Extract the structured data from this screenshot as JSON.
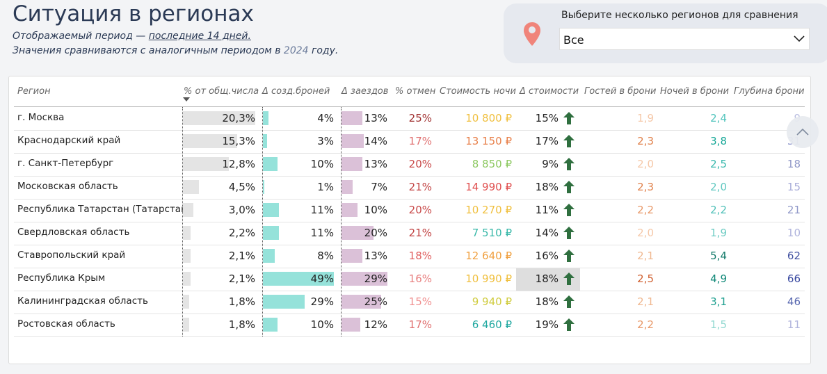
{
  "header": {
    "title": "Ситуация в регионах",
    "period_text": "Отображаемый период —",
    "period_link": "последние 14 дней.",
    "compare_text": "Значения сравниваются с аналогичным периодом в",
    "compare_year": "2024",
    "compare_tail": "году."
  },
  "selector": {
    "label": "Выберите несколько регионов для сравнения",
    "value": "Все"
  },
  "table": {
    "columns": [
      {
        "label": "Регион"
      },
      {
        "label": "% от общ.числа",
        "bar": "#e4e4e4"
      },
      {
        "label": "Δ созд.броней",
        "bar": "#95e2da"
      },
      {
        "label": "Δ заездов",
        "bar": "#dbc1d8"
      },
      {
        "label": "% отмен"
      },
      {
        "label": "Стоимость ночи"
      },
      {
        "label": "Δ стоимости",
        "arrow": "#2f6f3f"
      },
      {
        "label": "Гостей в брони"
      },
      {
        "label": "Ночей в брони"
      },
      {
        "label": "Глубина брони"
      }
    ],
    "rows": [
      [
        "г. Москва",
        {
          "value": 20.3,
          "label": "20,3%"
        },
        {
          "value": 4,
          "label": "4%"
        },
        {
          "value": 13,
          "label": "13%"
        },
        {
          "label": "25%",
          "color": "#a03030"
        },
        {
          "label": "10 800 ₽",
          "color": "#f0c040"
        },
        {
          "label": "15%"
        },
        {
          "label": "1,9",
          "color": "#f5c8a8"
        },
        {
          "label": "2,4",
          "color": "#50c4bc"
        },
        {
          "label": "9",
          "color": "#b8bce0"
        }
      ],
      [
        "Краснодарский край",
        {
          "value": 15.3,
          "label": "15,3%"
        },
        {
          "value": 3,
          "label": "3%"
        },
        {
          "value": 14,
          "label": "14%"
        },
        {
          "label": "17%",
          "color": "#e07070"
        },
        {
          "label": "13 150 ₽",
          "color": "#e8804a"
        },
        {
          "label": "17%"
        },
        {
          "label": "2,3",
          "color": "#e0804a"
        },
        {
          "label": "3,8",
          "color": "#18a898"
        },
        {
          "label": "31",
          "color": "#8890c8"
        }
      ],
      [
        "г. Санкт-Петербург",
        {
          "value": 12.8,
          "label": "12,8%"
        },
        {
          "value": 10,
          "label": "10%"
        },
        {
          "value": 13,
          "label": "13%"
        },
        {
          "label": "20%",
          "color": "#c84848"
        },
        {
          "label": "8 850 ₽",
          "color": "#8cc860"
        },
        {
          "label": "9%"
        },
        {
          "label": "2,0",
          "color": "#f5c8a8"
        },
        {
          "label": "2,5",
          "color": "#38b8ac"
        },
        {
          "label": "18",
          "color": "#9098c8"
        }
      ],
      [
        "Московская область",
        {
          "value": 4.5,
          "label": "4,5%"
        },
        {
          "value": 1,
          "label": "1%"
        },
        {
          "value": 7,
          "label": "7%"
        },
        {
          "label": "21%",
          "color": "#c04040"
        },
        {
          "label": "14 990 ₽",
          "color": "#e05050"
        },
        {
          "label": "18%"
        },
        {
          "label": "2,3",
          "color": "#e0804a"
        },
        {
          "label": "2,0",
          "color": "#60c8c0"
        },
        {
          "label": "15",
          "color": "#a8acd8"
        }
      ],
      [
        "Республика Татарстан (Татарстан)",
        {
          "value": 3.0,
          "label": "3,0%"
        },
        {
          "value": 11,
          "label": "11%"
        },
        {
          "value": 10,
          "label": "10%"
        },
        {
          "label": "20%",
          "color": "#c84848"
        },
        {
          "label": "10 270 ₽",
          "color": "#f0c040"
        },
        {
          "label": "11%"
        },
        {
          "label": "2,2",
          "color": "#e89868"
        },
        {
          "label": "2,2",
          "color": "#50c0b8"
        },
        {
          "label": "21",
          "color": "#9098c8"
        }
      ],
      [
        "Свердловская область",
        {
          "value": 2.2,
          "label": "2,2%"
        },
        {
          "value": 11,
          "label": "11%"
        },
        {
          "value": 20,
          "label": "20%"
        },
        {
          "label": "21%",
          "color": "#c04040"
        },
        {
          "label": "7 510 ₽",
          "color": "#38b8a8"
        },
        {
          "label": "14%"
        },
        {
          "label": "2,0",
          "color": "#f5c8a8"
        },
        {
          "label": "1,9",
          "color": "#70ccc4"
        },
        {
          "label": "10",
          "color": "#b0b4dc"
        }
      ],
      [
        "Ставропольский край",
        {
          "value": 2.1,
          "label": "2,1%"
        },
        {
          "value": 8,
          "label": "8%"
        },
        {
          "value": 13,
          "label": "13%"
        },
        {
          "label": "18%",
          "color": "#e06060"
        },
        {
          "label": "12 640 ₽",
          "color": "#f0a040"
        },
        {
          "label": "16%"
        },
        {
          "label": "2,1",
          "color": "#f0b890"
        },
        {
          "label": "5,4",
          "color": "#107868"
        },
        {
          "label": "62",
          "color": "#4050a0"
        }
      ],
      [
        "Республика Крым",
        {
          "value": 2.1,
          "label": "2,1%"
        },
        {
          "value": 49,
          "label": "49%"
        },
        {
          "value": 29,
          "label": "29%"
        },
        {
          "label": "16%",
          "color": "#e88080"
        },
        {
          "label": "10 990 ₽",
          "color": "#f0c040"
        },
        {
          "label": "18%",
          "highlight": "#dedede"
        },
        {
          "label": "2,5",
          "color": "#d06030"
        },
        {
          "label": "4,9",
          "color": "#108878"
        },
        {
          "label": "66",
          "color": "#3848a0"
        }
      ],
      [
        "Калининградская область",
        {
          "value": 1.8,
          "label": "1,8%"
        },
        {
          "value": 29,
          "label": "29%"
        },
        {
          "value": 25,
          "label": "25%"
        },
        {
          "label": "15%",
          "color": "#f09090"
        },
        {
          "label": "9 940 ₽",
          "color": "#d0cc40"
        },
        {
          "label": "18%"
        },
        {
          "label": "2,1",
          "color": "#f0b890"
        },
        {
          "label": "3,1",
          "color": "#20a090"
        },
        {
          "label": "46",
          "color": "#5868b0"
        }
      ],
      [
        "Ростовская область",
        {
          "value": 1.8,
          "label": "1,8%"
        },
        {
          "value": 10,
          "label": "10%"
        },
        {
          "value": 12,
          "label": "12%"
        },
        {
          "label": "17%",
          "color": "#e07070"
        },
        {
          "label": "6 460 ₽",
          "color": "#20a8a0"
        },
        {
          "label": "19%"
        },
        {
          "label": "2,2",
          "color": "#e89868"
        },
        {
          "label": "1,5",
          "color": "#90d8d0"
        },
        {
          "label": "11",
          "color": "#b0b4dc"
        }
      ]
    ]
  }
}
